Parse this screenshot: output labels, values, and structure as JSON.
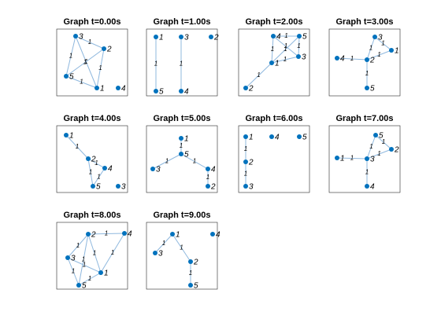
{
  "graphs": [
    {
      "title": "Graph t=0.00s",
      "nodes": [
        "1",
        "2",
        "3",
        "4",
        "5"
      ],
      "edges": [
        "1",
        "1",
        "1",
        "1",
        "1",
        "1"
      ]
    },
    {
      "title": "Graph t=1.00s",
      "nodes": [
        "1",
        "2",
        "3",
        "4",
        "5"
      ],
      "edges": [
        "1",
        "1"
      ]
    },
    {
      "title": "Graph t=2.00s",
      "nodes": [
        "1",
        "2",
        "3",
        "4",
        "5"
      ],
      "edges": [
        "1",
        "1",
        "1",
        "1",
        "1",
        "1",
        "1"
      ]
    },
    {
      "title": "Graph t=3.00s",
      "nodes": [
        "1",
        "2",
        "3",
        "4",
        "5"
      ],
      "edges": [
        "1",
        "1",
        "1",
        "1",
        "1"
      ]
    },
    {
      "title": "Graph t=4.00s",
      "nodes": [
        "1",
        "2",
        "3",
        "4",
        "5"
      ],
      "edges": [
        "1",
        "1",
        "1",
        "1"
      ]
    },
    {
      "title": "Graph t=5.00s",
      "nodes": [
        "1",
        "2",
        "3",
        "4",
        "5"
      ],
      "edges": [
        "1",
        "1",
        "1",
        "1"
      ]
    },
    {
      "title": "Graph t=6.00s",
      "nodes": [
        "1",
        "2",
        "3",
        "4",
        "5"
      ],
      "edges": [
        "1",
        "1"
      ]
    },
    {
      "title": "Graph t=7.00s",
      "nodes": [
        "1",
        "2",
        "3",
        "4",
        "5"
      ],
      "edges": [
        "1",
        "1",
        "1",
        "1",
        "1"
      ]
    },
    {
      "title": "Graph t=8.00s",
      "nodes": [
        "1",
        "2",
        "3",
        "4",
        "5"
      ],
      "edges": [
        "1",
        "1",
        "1",
        "1",
        "1",
        "1",
        "1",
        "1"
      ]
    },
    {
      "title": "Graph t=9.00s",
      "nodes": [
        "1",
        "2",
        "3",
        "4",
        "5"
      ],
      "edges": [
        "1",
        "1",
        "1"
      ]
    }
  ]
}
